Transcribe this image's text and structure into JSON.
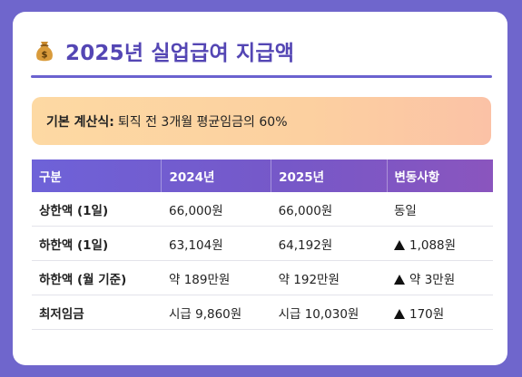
{
  "title": {
    "icon": "money-bag-icon",
    "text": "2025년 실업급여 지급액"
  },
  "formula": {
    "label": "기본 계산식:",
    "text": "퇴직 전 3개월 평균임금의 60%"
  },
  "table": {
    "headers": [
      "구분",
      "2024년",
      "2025년",
      "변동사항"
    ],
    "rows": [
      {
        "label": "상한액 (1일)",
        "y2024": "66,000원",
        "y2025": "66,000원",
        "change": "동일",
        "arrow": false
      },
      {
        "label": "하한액 (1일)",
        "y2024": "63,104원",
        "y2025": "64,192원",
        "change": "1,088원",
        "arrow": true
      },
      {
        "label": "하한액 (월 기준)",
        "y2024": "약 189만원",
        "y2025": "약 192만원",
        "change": "약 3만원",
        "arrow": true
      },
      {
        "label": "최저임금",
        "y2024": "시급 9,860원",
        "y2025": "시급 10,030원",
        "change": "170원",
        "arrow": true
      }
    ]
  },
  "colors": {
    "background": "#6f66cc",
    "title": "#5446b4",
    "header_start": "#6e62d8",
    "header_end": "#8a55be"
  }
}
